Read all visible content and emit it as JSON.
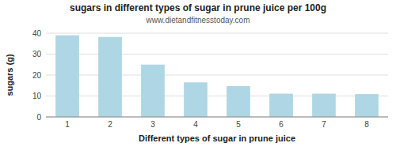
{
  "chart_data": {
    "type": "bar",
    "title": "sugars in different types of sugar in prune juice per 100g",
    "subtitle": "www.dietandfitnesstoday.com",
    "xlabel": "Different types of sugar in prune juice",
    "ylabel": "sugars (g)",
    "categories": [
      1,
      2,
      3,
      4,
      5,
      6,
      7,
      8
    ],
    "values": [
      39.0,
      38.2,
      25.0,
      16.5,
      14.7,
      11.1,
      11.1,
      10.9
    ],
    "color": "#aed6e4",
    "ylim": [
      0,
      40
    ],
    "yticks": [
      0,
      10,
      20,
      30,
      40
    ],
    "grid": true
  }
}
